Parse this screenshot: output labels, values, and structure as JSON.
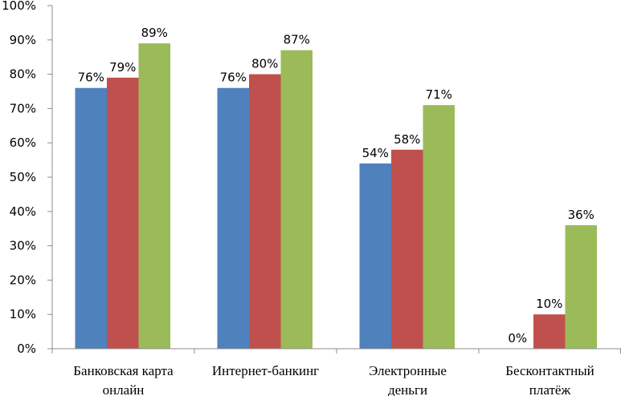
{
  "chart_data": {
    "type": "bar",
    "categories": [
      [
        "Банковская карта",
        "онлайн"
      ],
      [
        "Интернет-банкинг"
      ],
      [
        "Электронные",
        "деньги"
      ],
      [
        "Бесконтактный",
        "платёж"
      ]
    ],
    "series": [
      {
        "color": "#4F81BD",
        "values": [
          76,
          76,
          54,
          0
        ]
      },
      {
        "color": "#C0504D",
        "values": [
          79,
          80,
          58,
          10
        ]
      },
      {
        "color": "#9BBB59",
        "values": [
          89,
          87,
          71,
          36
        ]
      }
    ],
    "data_labels": [
      [
        "76%",
        "76%",
        "54%",
        "0%"
      ],
      [
        "79%",
        "80%",
        "58%",
        "10%"
      ],
      [
        "89%",
        "87%",
        "71%",
        "36%"
      ]
    ],
    "y_ticks": [
      "0%",
      "10%",
      "20%",
      "30%",
      "40%",
      "50%",
      "60%",
      "70%",
      "80%",
      "90%",
      "100%"
    ],
    "ylim": [
      0,
      100
    ],
    "title": "",
    "xlabel": "",
    "ylabel": "",
    "grid": false,
    "legend": "none"
  }
}
